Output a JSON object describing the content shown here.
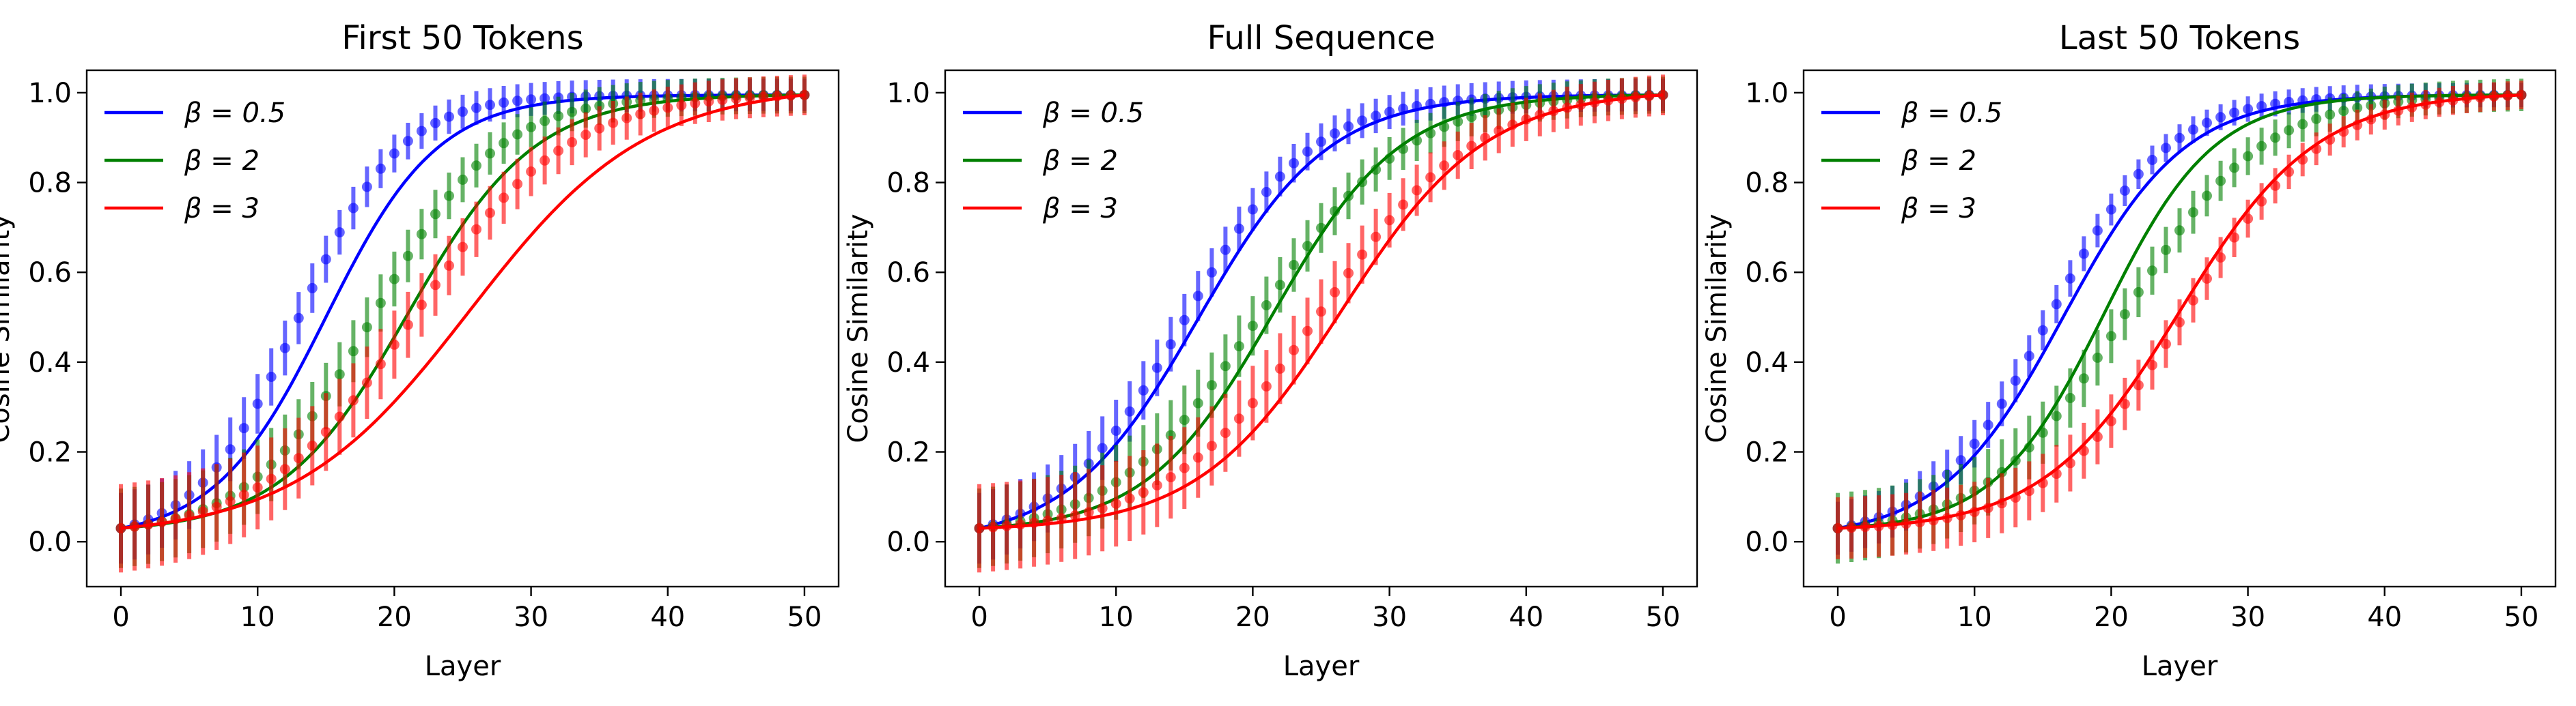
{
  "chart_data": [
    {
      "type": "line",
      "title": "First 50 Tokens",
      "xlabel": "Layer",
      "ylabel": "Cosine Similarity",
      "xlim": [
        -2.5,
        52.5
      ],
      "ylim": [
        -0.1,
        1.05
      ],
      "xticks": [
        0,
        10,
        20,
        30,
        40,
        50
      ],
      "yticks": [
        0.0,
        0.2,
        0.4,
        0.6,
        0.8,
        1.0
      ],
      "grid": false,
      "legend": "upper-left",
      "series": [
        {
          "name": "β = 0.5",
          "color": "#0000ff",
          "fit": {
            "start": 0.03,
            "k": 0.245,
            "mid": 15.0
          },
          "points": {
            "start": 0.03,
            "k": 0.27,
            "mid": 13.0
          },
          "err": 0.08
        },
        {
          "name": "β = 2",
          "color": "#008000",
          "fit": {
            "start": 0.03,
            "k": 0.215,
            "mid": 21.0
          },
          "points": {
            "start": 0.03,
            "k": 0.22,
            "mid": 18.5
          },
          "err": 0.09
        },
        {
          "name": "β = 3",
          "color": "#ff0000",
          "fit": {
            "start": 0.03,
            "k": 0.155,
            "mid": 25.5
          },
          "points": {
            "start": 0.03,
            "k": 0.18,
            "mid": 21.5
          },
          "err": 0.1
        }
      ]
    },
    {
      "type": "line",
      "title": "Full Sequence",
      "xlabel": "Layer",
      "ylabel": "Cosine Similarity",
      "xlim": [
        -2.5,
        52.5
      ],
      "ylim": [
        -0.1,
        1.05
      ],
      "xticks": [
        0,
        10,
        20,
        30,
        40,
        50
      ],
      "yticks": [
        0.0,
        0.2,
        0.4,
        0.6,
        0.8,
        1.0
      ],
      "grid": false,
      "legend": "upper-left",
      "series": [
        {
          "name": "β = 0.5",
          "color": "#0000ff",
          "fit": {
            "start": 0.03,
            "k": 0.21,
            "mid": 16.0
          },
          "points": {
            "start": 0.03,
            "k": 0.215,
            "mid": 15.0
          },
          "err": 0.08
        },
        {
          "name": "β = 2",
          "color": "#008000",
          "fit": {
            "start": 0.03,
            "k": 0.215,
            "mid": 21.5
          },
          "points": {
            "start": 0.03,
            "k": 0.185,
            "mid": 20.5
          },
          "err": 0.09
        },
        {
          "name": "β = 3",
          "color": "#ff0000",
          "fit": {
            "start": 0.03,
            "k": 0.19,
            "mid": 26.5
          },
          "points": {
            "start": 0.03,
            "k": 0.175,
            "mid": 25.0
          },
          "err": 0.1
        }
      ]
    },
    {
      "type": "line",
      "title": "Last 50 Tokens",
      "xlabel": "Layer",
      "ylabel": "Cosine Similarity",
      "xlim": [
        -2.5,
        52.5
      ],
      "ylim": [
        -0.1,
        1.05
      ],
      "xticks": [
        0,
        10,
        20,
        30,
        40,
        50
      ],
      "yticks": [
        0.0,
        0.2,
        0.4,
        0.6,
        0.8,
        1.0
      ],
      "grid": false,
      "legend": "upper-left",
      "series": [
        {
          "name": "β = 0.5",
          "color": "#0000ff",
          "fit": {
            "start": 0.03,
            "k": 0.225,
            "mid": 16.5
          },
          "points": {
            "start": 0.03,
            "k": 0.235,
            "mid": 15.5
          },
          "err": 0.06
        },
        {
          "name": "β = 2",
          "color": "#008000",
          "fit": {
            "start": 0.03,
            "k": 0.25,
            "mid": 19.5
          },
          "points": {
            "start": 0.03,
            "k": 0.2,
            "mid": 21.0
          },
          "err": 0.08
        },
        {
          "name": "β = 3",
          "color": "#ff0000",
          "fit": {
            "start": 0.03,
            "k": 0.2,
            "mid": 25.0
          },
          "points": {
            "start": 0.03,
            "k": 0.2,
            "mid": 25.5
          },
          "err": 0.07
        }
      ]
    }
  ]
}
